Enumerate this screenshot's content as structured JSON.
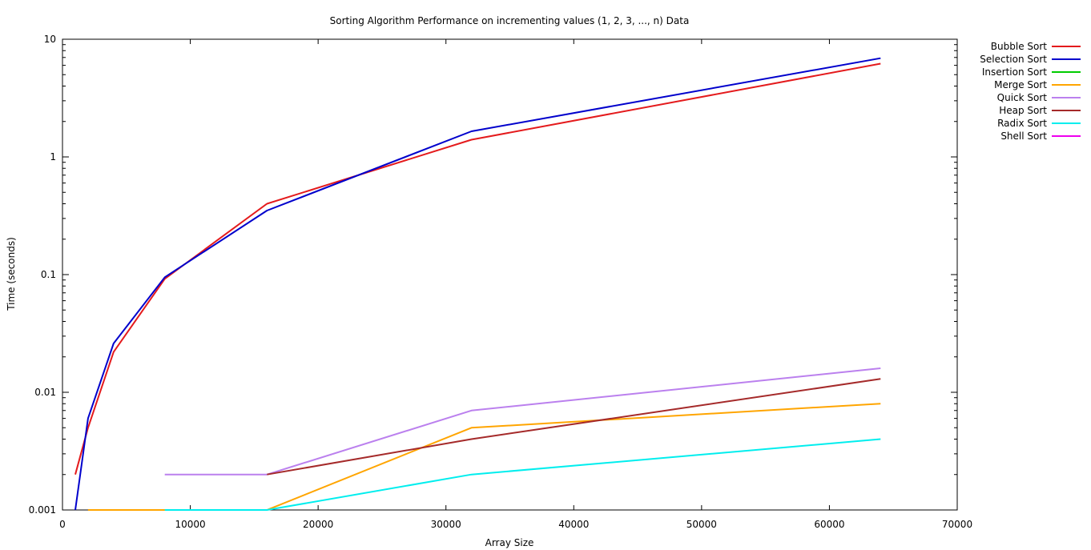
{
  "chart_data": {
    "type": "line",
    "title": "Sorting Algorithm Performance on incrementing values (1, 2, 3, ..., n) Data",
    "xlabel": "Array Size",
    "ylabel": "Time (seconds)",
    "xlim": [
      0,
      70000
    ],
    "ylim": [
      0.001,
      10
    ],
    "yscale": "log",
    "grid": false,
    "legend_position": "outside-top-right",
    "x_ticks": [
      {
        "value": 0,
        "label": "0"
      },
      {
        "value": 10000,
        "label": "10000"
      },
      {
        "value": 20000,
        "label": "20000"
      },
      {
        "value": 30000,
        "label": "30000"
      },
      {
        "value": 40000,
        "label": "40000"
      },
      {
        "value": 50000,
        "label": "50000"
      },
      {
        "value": 60000,
        "label": "60000"
      },
      {
        "value": 70000,
        "label": "70000"
      }
    ],
    "y_ticks": [
      {
        "value": 0.001,
        "label": "0.001"
      },
      {
        "value": 0.01,
        "label": "0.01"
      },
      {
        "value": 0.1,
        "label": "0.1"
      },
      {
        "value": 1,
        "label": "1"
      },
      {
        "value": 10,
        "label": "10"
      }
    ],
    "series": [
      {
        "name": "Bubble Sort",
        "color": "#e41a1c",
        "points": [
          [
            1000,
            0.002
          ],
          [
            2000,
            0.005
          ],
          [
            4000,
            0.022
          ],
          [
            8000,
            0.092
          ],
          [
            16000,
            0.4
          ],
          [
            32000,
            1.4
          ],
          [
            64000,
            6.2
          ]
        ]
      },
      {
        "name": "Selection Sort",
        "color": "#0000cc",
        "points": [
          [
            1000,
            0.001
          ],
          [
            2000,
            0.006
          ],
          [
            4000,
            0.026
          ],
          [
            8000,
            0.095
          ],
          [
            16000,
            0.35
          ],
          [
            32000,
            1.65
          ],
          [
            64000,
            6.9
          ]
        ]
      },
      {
        "name": "Insertion Sort",
        "color": "#00cc00",
        "points": []
      },
      {
        "name": "Merge Sort",
        "color": "#ffa500",
        "points": [
          [
            2000,
            0.001
          ],
          [
            4000,
            0.001
          ],
          [
            8000,
            0.001
          ],
          [
            16000,
            0.001
          ],
          [
            32000,
            0.005
          ],
          [
            64000,
            0.008
          ]
        ]
      },
      {
        "name": "Quick Sort",
        "color": "#bb80ee",
        "points": [
          [
            8000,
            0.002
          ],
          [
            16000,
            0.002
          ],
          [
            32000,
            0.007
          ],
          [
            64000,
            0.016
          ]
        ]
      },
      {
        "name": "Heap Sort",
        "color": "#a52a2a",
        "points": [
          [
            16000,
            0.002
          ],
          [
            32000,
            0.004
          ],
          [
            64000,
            0.013
          ]
        ]
      },
      {
        "name": "Radix Sort",
        "color": "#00eeee",
        "points": [
          [
            8000,
            0.001
          ],
          [
            16000,
            0.001
          ],
          [
            32000,
            0.002
          ],
          [
            64000,
            0.004
          ]
        ]
      },
      {
        "name": "Shell Sort",
        "color": "#ee00ee",
        "points": []
      }
    ]
  }
}
